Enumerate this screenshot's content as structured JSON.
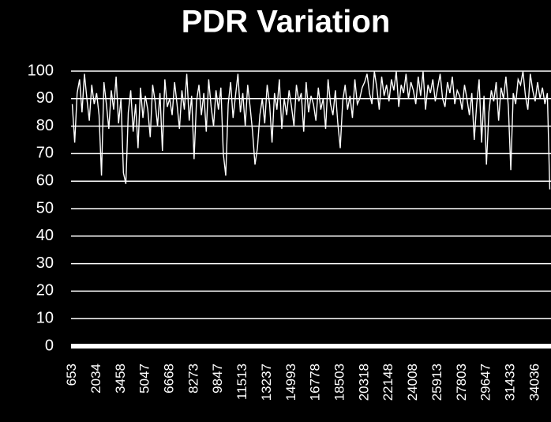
{
  "chart_data": {
    "type": "line",
    "title": "PDR Variation",
    "categories": [
      "653",
      null,
      null,
      null,
      null,
      null,
      null,
      null,
      null,
      null,
      "2034",
      null,
      null,
      null,
      null,
      null,
      null,
      null,
      null,
      null,
      "3458",
      null,
      null,
      null,
      null,
      null,
      null,
      null,
      null,
      null,
      "5047",
      null,
      null,
      null,
      null,
      null,
      null,
      null,
      null,
      null,
      "6668",
      null,
      null,
      null,
      null,
      null,
      null,
      null,
      null,
      null,
      "8273",
      null,
      null,
      null,
      null,
      null,
      null,
      null,
      null,
      null,
      "9847",
      null,
      null,
      null,
      null,
      null,
      null,
      null,
      null,
      null,
      "11513",
      null,
      null,
      null,
      null,
      null,
      null,
      null,
      null,
      null,
      "13237",
      null,
      null,
      null,
      null,
      null,
      null,
      null,
      null,
      null,
      "14993",
      null,
      null,
      null,
      null,
      null,
      null,
      null,
      null,
      null,
      "16778",
      null,
      null,
      null,
      null,
      null,
      null,
      null,
      null,
      null,
      "18503",
      null,
      null,
      null,
      null,
      null,
      null,
      null,
      null,
      null,
      "20318",
      null,
      null,
      null,
      null,
      null,
      null,
      null,
      null,
      null,
      "22148",
      null,
      null,
      null,
      null,
      null,
      null,
      null,
      null,
      null,
      "24008",
      null,
      null,
      null,
      null,
      null,
      null,
      null,
      null,
      null,
      "25913",
      null,
      null,
      null,
      null,
      null,
      null,
      null,
      null,
      null,
      "27803",
      null,
      null,
      null,
      null,
      null,
      null,
      null,
      null,
      null,
      "29647",
      null,
      null,
      null,
      null,
      null,
      null,
      null,
      null,
      null,
      "31433",
      null,
      null,
      null,
      null,
      null,
      null,
      null,
      null,
      null,
      "34036",
      null,
      null,
      null,
      null,
      null,
      null
    ],
    "values": [
      88,
      74,
      92,
      97,
      85,
      99,
      90,
      82,
      95,
      88,
      92,
      84,
      62,
      96,
      88,
      79,
      93,
      86,
      98,
      81,
      90,
      63,
      59,
      85,
      93,
      78,
      88,
      72,
      94,
      83,
      91,
      86,
      76,
      95,
      89,
      80,
      92,
      71,
      97,
      87,
      90,
      84,
      96,
      88,
      79,
      93,
      86,
      99,
      82,
      91,
      68,
      89,
      95,
      84,
      92,
      78,
      97,
      87,
      80,
      93,
      86,
      94,
      70,
      62,
      88,
      96,
      83,
      91,
      99,
      85,
      92,
      80,
      95,
      87,
      78,
      66,
      72,
      84,
      90,
      81,
      95,
      88,
      74,
      92,
      86,
      97,
      79,
      90,
      84,
      93,
      87,
      80,
      95,
      89,
      92,
      78,
      96,
      85,
      91,
      88,
      82,
      94,
      86,
      90,
      79,
      97,
      88,
      84,
      93,
      81,
      72,
      89,
      95,
      86,
      91,
      83,
      97,
      88,
      90,
      94,
      96,
      99,
      92,
      88,
      100,
      94,
      86,
      98,
      91,
      95,
      89,
      97,
      93,
      100,
      87,
      95,
      92,
      99,
      90,
      96,
      93,
      88,
      98,
      91,
      100,
      86,
      95,
      92,
      97,
      89,
      94,
      99,
      90,
      87,
      96,
      92,
      98,
      88,
      93,
      91,
      86,
      95,
      90,
      84,
      92,
      75,
      88,
      97,
      74,
      91,
      66,
      85,
      93,
      89,
      96,
      82,
      94,
      90,
      98,
      87,
      64,
      92,
      88,
      97,
      95,
      100,
      91,
      86,
      99,
      93,
      89,
      96,
      90,
      94,
      88,
      92,
      57
    ],
    "color": "#ffffff",
    "ylim": [
      0,
      100
    ],
    "yticks": [
      0,
      10,
      20,
      30,
      40,
      50,
      60,
      70,
      80,
      90,
      100
    ],
    "grid": true
  }
}
